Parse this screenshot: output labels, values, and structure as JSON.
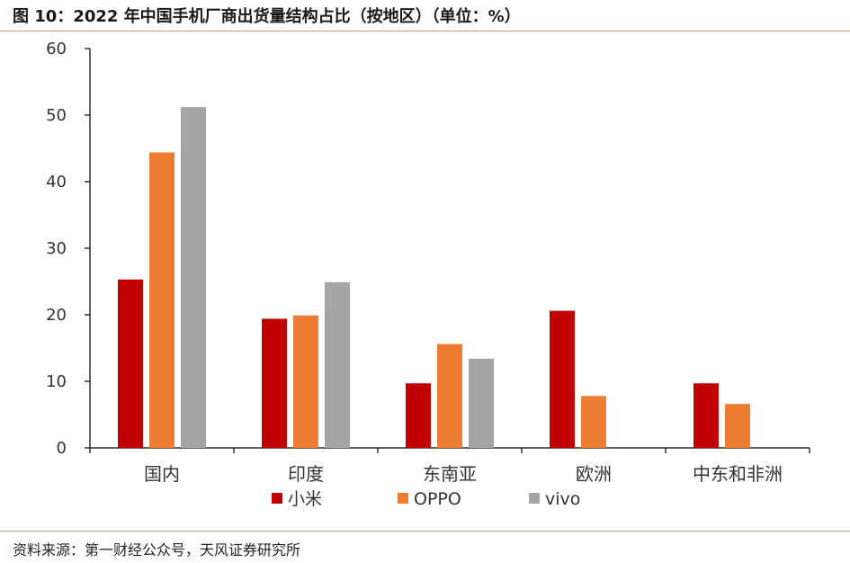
{
  "title": "图 10：2022 年中国手机厂商出货量结构占比（按地区）（单位：%）",
  "source": "资料来源：第一财经公众号，天风证券研究所",
  "chart_data": {
    "type": "bar",
    "categories": [
      "国内",
      "印度",
      "东南亚",
      "欧洲",
      "中东和非洲"
    ],
    "series": [
      {
        "name": "小米",
        "color": "#c00000",
        "values": [
          25.3,
          19.4,
          9.7,
          20.6,
          9.7
        ]
      },
      {
        "name": "OPPO",
        "color": "#ed7d31",
        "values": [
          44.4,
          19.9,
          15.6,
          7.8,
          6.6
        ]
      },
      {
        "name": "vivo",
        "color": "#a5a5a5",
        "values": [
          51.2,
          24.9,
          13.4,
          null,
          null
        ]
      }
    ],
    "ylim": [
      0,
      60
    ],
    "yticks": [
      0,
      10,
      20,
      30,
      40,
      50,
      60
    ],
    "xlabel": "",
    "ylabel": "",
    "grid": false,
    "legend": "bottom"
  }
}
